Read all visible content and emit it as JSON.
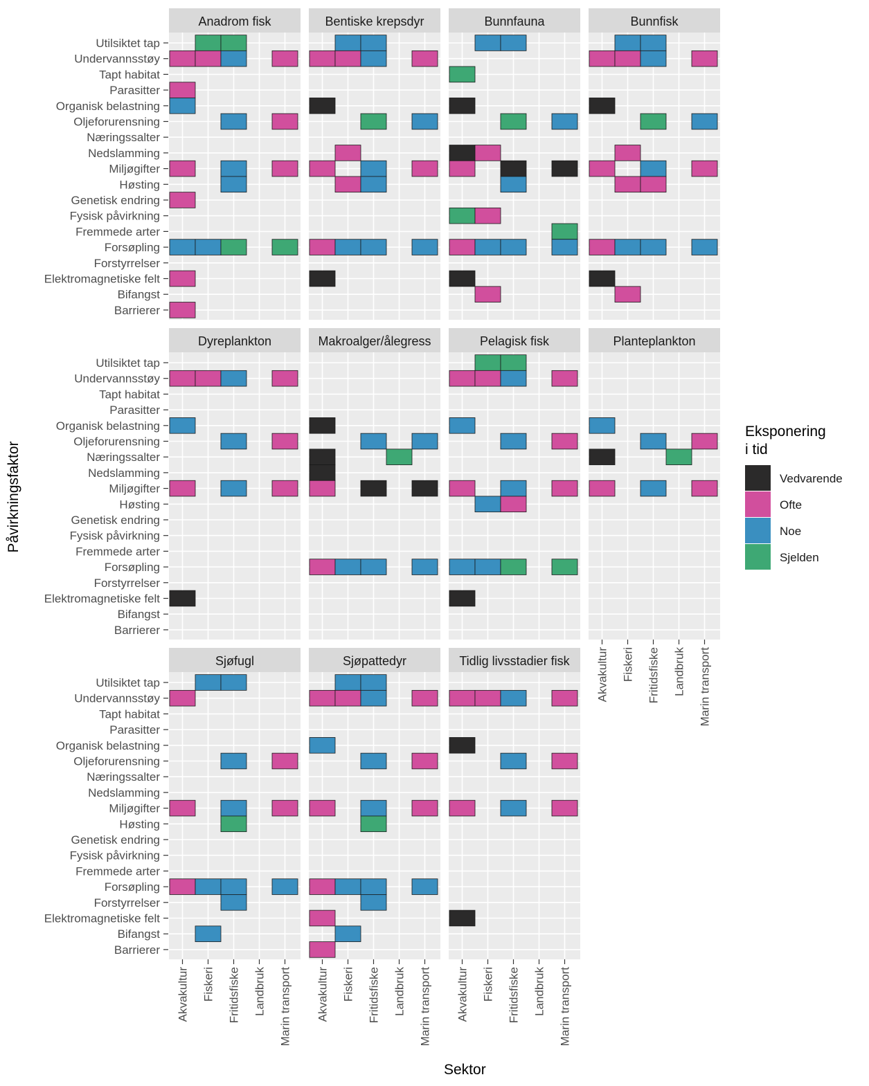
{
  "chart_data": {
    "type": "heatmap",
    "xlabel": "Sektor",
    "ylabel": "Påvirkningsfaktor",
    "x_categories": [
      "Akvakultur",
      "Fiskeri",
      "Fritidsfiske",
      "Landbruk",
      "Marin transport"
    ],
    "y_categories": [
      "Utilsiktet tap",
      "Undervannsstøy",
      "Tapt habitat",
      "Parasitter",
      "Organisk belastning",
      "Oljeforurensning",
      "Næringssalter",
      "Nedslamming",
      "Miljøgifter",
      "Høsting",
      "Genetisk endring",
      "Fysisk påvirkning",
      "Fremmede arter",
      "Forsøpling",
      "Forstyrrelser",
      "Elektromagnetiske felt",
      "Bifangst",
      "Barrierer"
    ],
    "legend": {
      "title_lines": [
        "Eksponering",
        "i tid"
      ],
      "position": "right",
      "levels": [
        {
          "key": "V",
          "label": "Vedvarende",
          "color": "#2b2a2a"
        },
        {
          "key": "O",
          "label": "Ofte",
          "color": "#d14f9d"
        },
        {
          "key": "N",
          "label": "Noe",
          "color": "#3a8fc0"
        },
        {
          "key": "S",
          "label": "Sjelden",
          "color": "#3ea874"
        }
      ]
    },
    "panels": [
      {
        "title": "Anadrom fisk",
        "cells": [
          [
            "Utilsiktet tap",
            "Fiskeri",
            "S"
          ],
          [
            "Utilsiktet tap",
            "Fritidsfiske",
            "S"
          ],
          [
            "Undervannsstøy",
            "Akvakultur",
            "O"
          ],
          [
            "Undervannsstøy",
            "Fiskeri",
            "O"
          ],
          [
            "Undervannsstøy",
            "Fritidsfiske",
            "N"
          ],
          [
            "Undervannsstøy",
            "Marin transport",
            "O"
          ],
          [
            "Parasitter",
            "Akvakultur",
            "O"
          ],
          [
            "Organisk belastning",
            "Akvakultur",
            "N"
          ],
          [
            "Oljeforurensning",
            "Fritidsfiske",
            "N"
          ],
          [
            "Oljeforurensning",
            "Marin transport",
            "O"
          ],
          [
            "Miljøgifter",
            "Akvakultur",
            "O"
          ],
          [
            "Miljøgifter",
            "Fritidsfiske",
            "N"
          ],
          [
            "Miljøgifter",
            "Marin transport",
            "O"
          ],
          [
            "Høsting",
            "Fritidsfiske",
            "N"
          ],
          [
            "Genetisk endring",
            "Akvakultur",
            "O"
          ],
          [
            "Forsøpling",
            "Akvakultur",
            "N"
          ],
          [
            "Forsøpling",
            "Fiskeri",
            "N"
          ],
          [
            "Forsøpling",
            "Fritidsfiske",
            "S"
          ],
          [
            "Forsøpling",
            "Marin transport",
            "S"
          ],
          [
            "Elektromagnetiske felt",
            "Akvakultur",
            "O"
          ],
          [
            "Barrierer",
            "Akvakultur",
            "O"
          ]
        ]
      },
      {
        "title": "Bentiske krepsdyr",
        "cells": [
          [
            "Utilsiktet tap",
            "Fiskeri",
            "N"
          ],
          [
            "Utilsiktet tap",
            "Fritidsfiske",
            "N"
          ],
          [
            "Undervannsstøy",
            "Akvakultur",
            "O"
          ],
          [
            "Undervannsstøy",
            "Fiskeri",
            "O"
          ],
          [
            "Undervannsstøy",
            "Fritidsfiske",
            "N"
          ],
          [
            "Undervannsstøy",
            "Marin transport",
            "O"
          ],
          [
            "Organisk belastning",
            "Akvakultur",
            "V"
          ],
          [
            "Oljeforurensning",
            "Fritidsfiske",
            "S"
          ],
          [
            "Oljeforurensning",
            "Marin transport",
            "N"
          ],
          [
            "Nedslamming",
            "Fiskeri",
            "O"
          ],
          [
            "Miljøgifter",
            "Akvakultur",
            "O"
          ],
          [
            "Miljøgifter",
            "Fritidsfiske",
            "N"
          ],
          [
            "Miljøgifter",
            "Marin transport",
            "O"
          ],
          [
            "Høsting",
            "Fiskeri",
            "O"
          ],
          [
            "Høsting",
            "Fritidsfiske",
            "N"
          ],
          [
            "Forsøpling",
            "Akvakultur",
            "O"
          ],
          [
            "Forsøpling",
            "Fiskeri",
            "N"
          ],
          [
            "Forsøpling",
            "Fritidsfiske",
            "N"
          ],
          [
            "Forsøpling",
            "Marin transport",
            "N"
          ],
          [
            "Elektromagnetiske felt",
            "Akvakultur",
            "V"
          ]
        ]
      },
      {
        "title": "Bunnfauna",
        "cells": [
          [
            "Utilsiktet tap",
            "Fiskeri",
            "N"
          ],
          [
            "Utilsiktet tap",
            "Fritidsfiske",
            "N"
          ],
          [
            "Tapt habitat",
            "Akvakultur",
            "S"
          ],
          [
            "Organisk belastning",
            "Akvakultur",
            "V"
          ],
          [
            "Oljeforurensning",
            "Fritidsfiske",
            "S"
          ],
          [
            "Oljeforurensning",
            "Marin transport",
            "N"
          ],
          [
            "Nedslamming",
            "Akvakultur",
            "V"
          ],
          [
            "Nedslamming",
            "Fiskeri",
            "O"
          ],
          [
            "Miljøgifter",
            "Akvakultur",
            "O"
          ],
          [
            "Miljøgifter",
            "Fritidsfiske",
            "V"
          ],
          [
            "Miljøgifter",
            "Marin transport",
            "V"
          ],
          [
            "Høsting",
            "Fritidsfiske",
            "N"
          ],
          [
            "Fysisk påvirkning",
            "Akvakultur",
            "S"
          ],
          [
            "Fysisk påvirkning",
            "Fiskeri",
            "O"
          ],
          [
            "Fremmede arter",
            "Marin transport",
            "S"
          ],
          [
            "Forsøpling",
            "Akvakultur",
            "O"
          ],
          [
            "Forsøpling",
            "Fiskeri",
            "N"
          ],
          [
            "Forsøpling",
            "Fritidsfiske",
            "N"
          ],
          [
            "Forsøpling",
            "Marin transport",
            "N"
          ],
          [
            "Elektromagnetiske felt",
            "Akvakultur",
            "V"
          ],
          [
            "Bifangst",
            "Fiskeri",
            "O"
          ]
        ]
      },
      {
        "title": "Bunnfisk",
        "cells": [
          [
            "Utilsiktet tap",
            "Fiskeri",
            "N"
          ],
          [
            "Utilsiktet tap",
            "Fritidsfiske",
            "N"
          ],
          [
            "Undervannsstøy",
            "Akvakultur",
            "O"
          ],
          [
            "Undervannsstøy",
            "Fiskeri",
            "O"
          ],
          [
            "Undervannsstøy",
            "Fritidsfiske",
            "N"
          ],
          [
            "Undervannsstøy",
            "Marin transport",
            "O"
          ],
          [
            "Organisk belastning",
            "Akvakultur",
            "V"
          ],
          [
            "Oljeforurensning",
            "Fritidsfiske",
            "S"
          ],
          [
            "Oljeforurensning",
            "Marin transport",
            "N"
          ],
          [
            "Nedslamming",
            "Fiskeri",
            "O"
          ],
          [
            "Miljøgifter",
            "Akvakultur",
            "O"
          ],
          [
            "Miljøgifter",
            "Fritidsfiske",
            "N"
          ],
          [
            "Miljøgifter",
            "Marin transport",
            "O"
          ],
          [
            "Høsting",
            "Fiskeri",
            "O"
          ],
          [
            "Høsting",
            "Fritidsfiske",
            "O"
          ],
          [
            "Forsøpling",
            "Akvakultur",
            "O"
          ],
          [
            "Forsøpling",
            "Fiskeri",
            "N"
          ],
          [
            "Forsøpling",
            "Fritidsfiske",
            "N"
          ],
          [
            "Forsøpling",
            "Marin transport",
            "N"
          ],
          [
            "Elektromagnetiske felt",
            "Akvakultur",
            "V"
          ],
          [
            "Bifangst",
            "Fiskeri",
            "O"
          ]
        ]
      },
      {
        "title": "Dyreplankton",
        "cells": [
          [
            "Undervannsstøy",
            "Akvakultur",
            "O"
          ],
          [
            "Undervannsstøy",
            "Fiskeri",
            "O"
          ],
          [
            "Undervannsstøy",
            "Fritidsfiske",
            "N"
          ],
          [
            "Undervannsstøy",
            "Marin transport",
            "O"
          ],
          [
            "Organisk belastning",
            "Akvakultur",
            "N"
          ],
          [
            "Oljeforurensning",
            "Fritidsfiske",
            "N"
          ],
          [
            "Oljeforurensning",
            "Marin transport",
            "O"
          ],
          [
            "Miljøgifter",
            "Akvakultur",
            "O"
          ],
          [
            "Miljøgifter",
            "Fritidsfiske",
            "N"
          ],
          [
            "Miljøgifter",
            "Marin transport",
            "O"
          ],
          [
            "Elektromagnetiske felt",
            "Akvakultur",
            "V"
          ]
        ]
      },
      {
        "title": "Makroalger/ålegress",
        "cells": [
          [
            "Organisk belastning",
            "Akvakultur",
            "V"
          ],
          [
            "Oljeforurensning",
            "Fritidsfiske",
            "N"
          ],
          [
            "Oljeforurensning",
            "Marin transport",
            "N"
          ],
          [
            "Næringssalter",
            "Akvakultur",
            "V"
          ],
          [
            "Næringssalter",
            "Landbruk",
            "S"
          ],
          [
            "Nedslamming",
            "Akvakultur",
            "V"
          ],
          [
            "Miljøgifter",
            "Akvakultur",
            "O"
          ],
          [
            "Miljøgifter",
            "Fritidsfiske",
            "V"
          ],
          [
            "Miljøgifter",
            "Marin transport",
            "V"
          ],
          [
            "Forsøpling",
            "Akvakultur",
            "O"
          ],
          [
            "Forsøpling",
            "Fiskeri",
            "N"
          ],
          [
            "Forsøpling",
            "Fritidsfiske",
            "N"
          ],
          [
            "Forsøpling",
            "Marin transport",
            "N"
          ]
        ]
      },
      {
        "title": "Pelagisk fisk",
        "cells": [
          [
            "Utilsiktet tap",
            "Fiskeri",
            "S"
          ],
          [
            "Utilsiktet tap",
            "Fritidsfiske",
            "S"
          ],
          [
            "Undervannsstøy",
            "Akvakultur",
            "O"
          ],
          [
            "Undervannsstøy",
            "Fiskeri",
            "O"
          ],
          [
            "Undervannsstøy",
            "Fritidsfiske",
            "N"
          ],
          [
            "Undervannsstøy",
            "Marin transport",
            "O"
          ],
          [
            "Organisk belastning",
            "Akvakultur",
            "N"
          ],
          [
            "Oljeforurensning",
            "Fritidsfiske",
            "N"
          ],
          [
            "Oljeforurensning",
            "Marin transport",
            "O"
          ],
          [
            "Miljøgifter",
            "Akvakultur",
            "O"
          ],
          [
            "Miljøgifter",
            "Fritidsfiske",
            "N"
          ],
          [
            "Miljøgifter",
            "Marin transport",
            "O"
          ],
          [
            "Høsting",
            "Fiskeri",
            "N"
          ],
          [
            "Høsting",
            "Fritidsfiske",
            "O"
          ],
          [
            "Forsøpling",
            "Akvakultur",
            "N"
          ],
          [
            "Forsøpling",
            "Fiskeri",
            "N"
          ],
          [
            "Forsøpling",
            "Fritidsfiske",
            "S"
          ],
          [
            "Forsøpling",
            "Marin transport",
            "S"
          ],
          [
            "Elektromagnetiske felt",
            "Akvakultur",
            "V"
          ]
        ]
      },
      {
        "title": "Planteplankton",
        "cells": [
          [
            "Organisk belastning",
            "Akvakultur",
            "N"
          ],
          [
            "Oljeforurensning",
            "Fritidsfiske",
            "N"
          ],
          [
            "Oljeforurensning",
            "Marin transport",
            "O"
          ],
          [
            "Næringssalter",
            "Akvakultur",
            "V"
          ],
          [
            "Næringssalter",
            "Landbruk",
            "S"
          ],
          [
            "Miljøgifter",
            "Akvakultur",
            "O"
          ],
          [
            "Miljøgifter",
            "Fritidsfiske",
            "N"
          ],
          [
            "Miljøgifter",
            "Marin transport",
            "O"
          ]
        ]
      },
      {
        "title": "Sjøfugl",
        "cells": [
          [
            "Utilsiktet tap",
            "Fiskeri",
            "N"
          ],
          [
            "Utilsiktet tap",
            "Fritidsfiske",
            "N"
          ],
          [
            "Undervannsstøy",
            "Akvakultur",
            "O"
          ],
          [
            "Oljeforurensning",
            "Fritidsfiske",
            "N"
          ],
          [
            "Oljeforurensning",
            "Marin transport",
            "O"
          ],
          [
            "Miljøgifter",
            "Akvakultur",
            "O"
          ],
          [
            "Miljøgifter",
            "Fritidsfiske",
            "N"
          ],
          [
            "Miljøgifter",
            "Marin transport",
            "O"
          ],
          [
            "Høsting",
            "Fritidsfiske",
            "S"
          ],
          [
            "Forsøpling",
            "Akvakultur",
            "O"
          ],
          [
            "Forsøpling",
            "Fiskeri",
            "N"
          ],
          [
            "Forsøpling",
            "Fritidsfiske",
            "N"
          ],
          [
            "Forsøpling",
            "Marin transport",
            "N"
          ],
          [
            "Forstyrrelser",
            "Fritidsfiske",
            "N"
          ],
          [
            "Bifangst",
            "Fiskeri",
            "N"
          ]
        ]
      },
      {
        "title": "Sjøpattedyr",
        "cells": [
          [
            "Utilsiktet tap",
            "Fiskeri",
            "N"
          ],
          [
            "Utilsiktet tap",
            "Fritidsfiske",
            "N"
          ],
          [
            "Undervannsstøy",
            "Akvakultur",
            "O"
          ],
          [
            "Undervannsstøy",
            "Fiskeri",
            "O"
          ],
          [
            "Undervannsstøy",
            "Fritidsfiske",
            "N"
          ],
          [
            "Undervannsstøy",
            "Marin transport",
            "O"
          ],
          [
            "Organisk belastning",
            "Akvakultur",
            "N"
          ],
          [
            "Oljeforurensning",
            "Fritidsfiske",
            "N"
          ],
          [
            "Oljeforurensning",
            "Marin transport",
            "O"
          ],
          [
            "Miljøgifter",
            "Akvakultur",
            "O"
          ],
          [
            "Miljøgifter",
            "Fritidsfiske",
            "N"
          ],
          [
            "Miljøgifter",
            "Marin transport",
            "O"
          ],
          [
            "Høsting",
            "Fritidsfiske",
            "S"
          ],
          [
            "Forsøpling",
            "Akvakultur",
            "O"
          ],
          [
            "Forsøpling",
            "Fiskeri",
            "N"
          ],
          [
            "Forsøpling",
            "Fritidsfiske",
            "N"
          ],
          [
            "Forsøpling",
            "Marin transport",
            "N"
          ],
          [
            "Forstyrrelser",
            "Fritidsfiske",
            "N"
          ],
          [
            "Elektromagnetiske felt",
            "Akvakultur",
            "O"
          ],
          [
            "Bifangst",
            "Fiskeri",
            "N"
          ],
          [
            "Barrierer",
            "Akvakultur",
            "O"
          ]
        ]
      },
      {
        "title": "Tidlig livsstadier fisk",
        "cells": [
          [
            "Undervannsstøy",
            "Akvakultur",
            "O"
          ],
          [
            "Undervannsstøy",
            "Fiskeri",
            "O"
          ],
          [
            "Undervannsstøy",
            "Fritidsfiske",
            "N"
          ],
          [
            "Undervannsstøy",
            "Marin transport",
            "O"
          ],
          [
            "Organisk belastning",
            "Akvakultur",
            "V"
          ],
          [
            "Oljeforurensning",
            "Fritidsfiske",
            "N"
          ],
          [
            "Oljeforurensning",
            "Marin transport",
            "O"
          ],
          [
            "Miljøgifter",
            "Akvakultur",
            "O"
          ],
          [
            "Miljøgifter",
            "Fritidsfiske",
            "N"
          ],
          [
            "Miljøgifter",
            "Marin transport",
            "O"
          ],
          [
            "Elektromagnetiske felt",
            "Akvakultur",
            "V"
          ]
        ]
      }
    ]
  }
}
